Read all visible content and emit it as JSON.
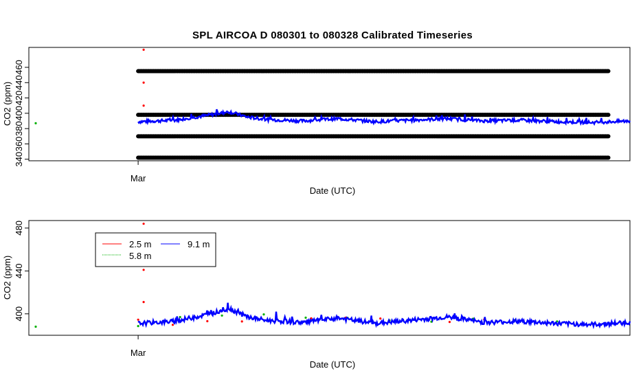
{
  "page": {
    "title": "SPL   AIRCOA  D    080301  to  080328   Calibrated Timeseries"
  },
  "colors": {
    "series_2_5m": "#ff0000",
    "series_5_8m": "#00b000",
    "series_9_1m": "#0000ff",
    "calibration_points": "#000000"
  },
  "chart_data": [
    {
      "type": "scatter",
      "title": "SPL   AIRCOA  D    080301  to  080328   Calibrated Timeseries",
      "xlabel": "Date (UTC)",
      "ylabel": "CO2 (ppm)",
      "x_tick_labels": [
        "Mar"
      ],
      "x_ticks": [
        "2008-03-01"
      ],
      "xlim": [
        "2008-02-24",
        "2008-03-28"
      ],
      "ylim": [
        338,
        486
      ],
      "y_ticks": [
        340,
        360,
        380,
        400,
        420,
        440,
        460
      ],
      "grid": false,
      "legend": null,
      "calibration_levels": [
        342,
        370,
        398,
        455
      ],
      "calibration_range": [
        "2008-03-01",
        "2008-03-28"
      ],
      "outliers": [
        {
          "series": "2.5 m",
          "x": "2008-03-01",
          "y": 483
        },
        {
          "series": "2.5 m",
          "x": "2008-03-01",
          "y": 440
        },
        {
          "series": "2.5 m",
          "x": "2008-03-01",
          "y": 410
        },
        {
          "series": "5.8 m",
          "x": "2008-02-24",
          "y": 387
        }
      ],
      "series": [
        {
          "name": "9.1 m",
          "x": [
            "2008-03-01",
            "2008-03-03",
            "2008-03-05",
            "2008-03-06",
            "2008-03-07",
            "2008-03-08",
            "2008-03-10",
            "2008-03-12",
            "2008-03-14",
            "2008-03-16",
            "2008-03-18",
            "2008-03-20",
            "2008-03-22",
            "2008-03-24",
            "2008-03-26",
            "2008-03-28"
          ],
          "y": [
            389,
            391,
            398,
            402,
            395,
            392,
            390,
            393,
            389,
            391,
            393,
            390,
            391,
            389,
            388,
            390
          ]
        }
      ]
    },
    {
      "type": "line",
      "title": "",
      "xlabel": "Date (UTC)",
      "ylabel": "CO2 (ppm)",
      "x_tick_labels": [
        "Mar"
      ],
      "x_ticks": [
        "2008-03-01"
      ],
      "xlim": [
        "2008-02-24",
        "2008-03-28"
      ],
      "ylim": [
        380,
        487
      ],
      "y_ticks": [
        400,
        440,
        480
      ],
      "grid": false,
      "legend": "top-left",
      "outliers": [
        {
          "series": "2.5 m",
          "x": "2008-03-01",
          "y": 484
        },
        {
          "series": "2.5 m",
          "x": "2008-03-01",
          "y": 441
        },
        {
          "series": "2.5 m",
          "x": "2008-03-01",
          "y": 411
        },
        {
          "series": "5.8 m",
          "x": "2008-02-24",
          "y": 388
        }
      ],
      "series": [
        {
          "name": "2.5 m",
          "x": [
            "2008-03-01",
            "2008-03-02",
            "2008-03-14",
            "2008-03-20"
          ],
          "y": [
            396,
            390,
            397,
            393
          ]
        },
        {
          "name": "5.8 m",
          "x": [
            "2008-03-01",
            "2008-03-05",
            "2008-03-12",
            "2008-03-24"
          ],
          "y": [
            389,
            400,
            396,
            392
          ]
        },
        {
          "name": "9.1 m",
          "x": [
            "2008-03-01",
            "2008-03-03",
            "2008-03-05",
            "2008-03-06",
            "2008-03-07",
            "2008-03-08",
            "2008-03-10",
            "2008-03-12",
            "2008-03-14",
            "2008-03-16",
            "2008-03-18",
            "2008-03-20",
            "2008-03-22",
            "2008-03-24",
            "2008-03-26",
            "2008-03-28"
          ],
          "y": [
            391,
            393,
            400,
            405,
            397,
            394,
            392,
            396,
            391,
            394,
            397,
            392,
            393,
            391,
            390,
            392
          ]
        }
      ]
    }
  ],
  "legend": {
    "entries": [
      "2.5 m",
      "9.1 m",
      "5.8 m"
    ]
  }
}
